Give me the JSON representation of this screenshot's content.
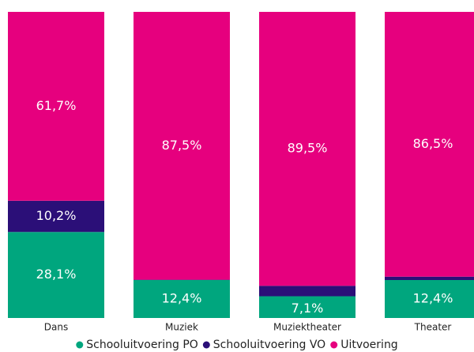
{
  "chart_data": {
    "type": "stacked_bar_100",
    "categories": [
      "Dans",
      "Muziek",
      "Muziektheater",
      "Theater"
    ],
    "series": [
      {
        "name": "Schooluitvoering PO",
        "color": "#00a67e",
        "values": [
          28.1,
          12.4,
          7.1,
          12.4
        ],
        "value_labels": [
          "28,1%",
          "12,4%",
          "7,1%",
          "12,4%"
        ]
      },
      {
        "name": "Schooluitvoering VO",
        "color": "#2b0f78",
        "values": [
          10.2,
          0.1,
          3.4,
          1.1
        ],
        "value_labels": [
          "10,2%",
          null,
          null,
          null
        ]
      },
      {
        "name": "Uitvoering",
        "color": "#e6007e",
        "values": [
          61.7,
          87.5,
          89.5,
          86.5
        ],
        "value_labels": [
          "61,7%",
          "87,5%",
          "89,5%",
          "86,5%"
        ]
      }
    ],
    "ylim": [
      0,
      100
    ]
  }
}
